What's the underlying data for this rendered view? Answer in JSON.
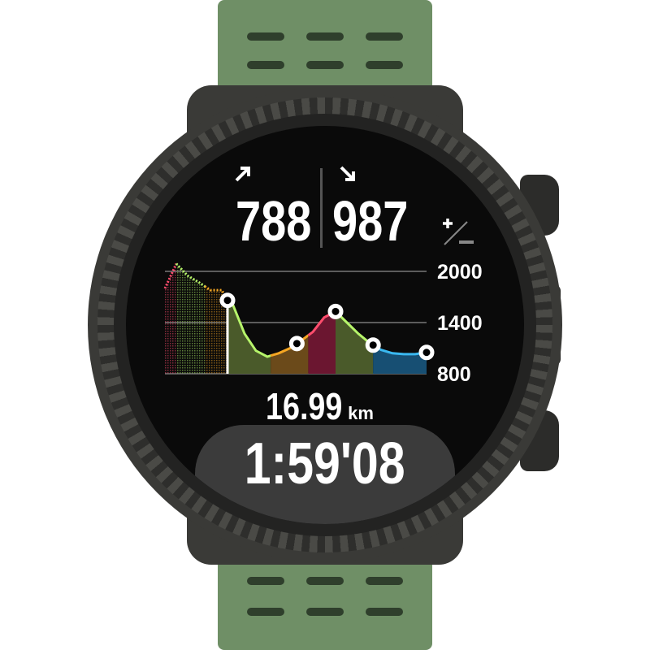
{
  "ascent": {
    "icon": "arrow-up-right-icon",
    "value": "788"
  },
  "descent": {
    "icon": "arrow-down-right-icon",
    "value": "987"
  },
  "plusminus_icon": "plus-minus-icon",
  "distance": {
    "value": "16.99",
    "unit": "km"
  },
  "duration": "1:59'08",
  "chart_data": {
    "type": "area",
    "title": "",
    "xlabel": "",
    "ylabel": "",
    "ylim": [
      800,
      2000
    ],
    "yticks": [
      "2000",
      "1400",
      "800"
    ],
    "grid": true,
    "current_position": 5.5,
    "points": [
      [
        0,
        1800
      ],
      [
        1,
        2090
      ],
      [
        2,
        1950
      ],
      [
        3,
        1870
      ],
      [
        4,
        1780
      ],
      [
        5,
        1780
      ],
      [
        5.5,
        1660
      ],
      [
        6,
        1600
      ],
      [
        7,
        1270
      ],
      [
        8,
        1070
      ],
      [
        9,
        1000
      ],
      [
        10,
        1040
      ],
      [
        11,
        1100
      ],
      [
        12,
        1190
      ],
      [
        13,
        1290
      ],
      [
        14,
        1460
      ],
      [
        15,
        1530
      ],
      [
        16,
        1400
      ],
      [
        17,
        1270
      ],
      [
        18,
        1160
      ],
      [
        19,
        1080
      ],
      [
        20,
        1040
      ],
      [
        21,
        1030
      ],
      [
        22,
        1030
      ],
      [
        23,
        1050
      ]
    ],
    "waypoints": [
      5.5,
      11.6,
      15,
      18.3,
      23
    ],
    "segments": [
      {
        "from": 0,
        "to": 1,
        "color": "#ff4d6d",
        "fill": "#6b1630"
      },
      {
        "from": 1,
        "to": 3.5,
        "color": "#b6f46a",
        "fill": "#4a5a2a"
      },
      {
        "from": 3.5,
        "to": 5.5,
        "color": "#f5a623",
        "fill": "#6b4a1a"
      },
      {
        "from": 5.5,
        "to": 9.3,
        "color": "#b6f46a",
        "fill": "#4a5a2a"
      },
      {
        "from": 9.3,
        "to": 12.6,
        "color": "#f5a623",
        "fill": "#6b4a1a"
      },
      {
        "from": 12.6,
        "to": 15,
        "color": "#ff4d6d",
        "fill": "#6b1630"
      },
      {
        "from": 15,
        "to": 18.3,
        "color": "#b6f46a",
        "fill": "#4a5a2a"
      },
      {
        "from": 18.3,
        "to": 23,
        "color": "#3ab8f0",
        "fill": "#174f73"
      }
    ]
  }
}
